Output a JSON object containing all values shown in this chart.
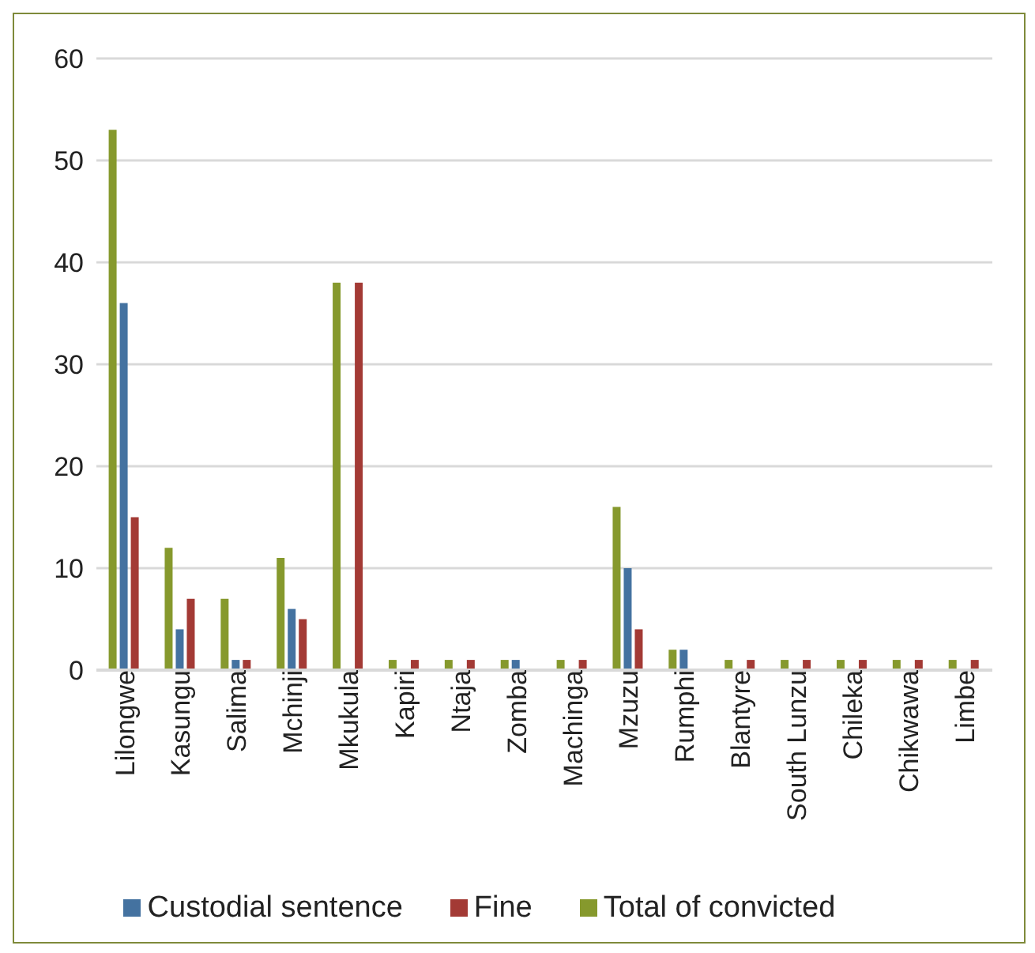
{
  "chart_data": {
    "type": "bar",
    "categories": [
      "Lilongwe",
      "Kasungu",
      "Salima",
      "Mchinji",
      "Mkukula",
      "Kapiri",
      "Ntaja",
      "Zomba",
      "Machinga",
      "Mzuzu",
      "Rumphi",
      "Blantyre",
      "South Lunzu",
      "Chileka",
      "Chikwawa",
      "Limbe"
    ],
    "series": [
      {
        "name": "Total of convicted",
        "color": "#86992d",
        "values": [
          53,
          12,
          7,
          11,
          38,
          1,
          1,
          1,
          1,
          16,
          2,
          1,
          1,
          1,
          1,
          1
        ]
      },
      {
        "name": "Custodial sentence",
        "color": "#4472a0",
        "values": [
          36,
          4,
          1,
          6,
          0,
          0,
          0,
          1,
          0,
          10,
          2,
          0,
          0,
          0,
          0,
          0
        ]
      },
      {
        "name": "Fine",
        "color": "#a33a35",
        "values": [
          15,
          7,
          1,
          5,
          38,
          1,
          1,
          0,
          1,
          4,
          0,
          1,
          1,
          1,
          1,
          1
        ]
      }
    ],
    "ylim": [
      0,
      60
    ],
    "yticks": [
      0,
      10,
      20,
      30,
      40,
      50,
      60
    ],
    "grid": "y",
    "legend": "bottom"
  }
}
